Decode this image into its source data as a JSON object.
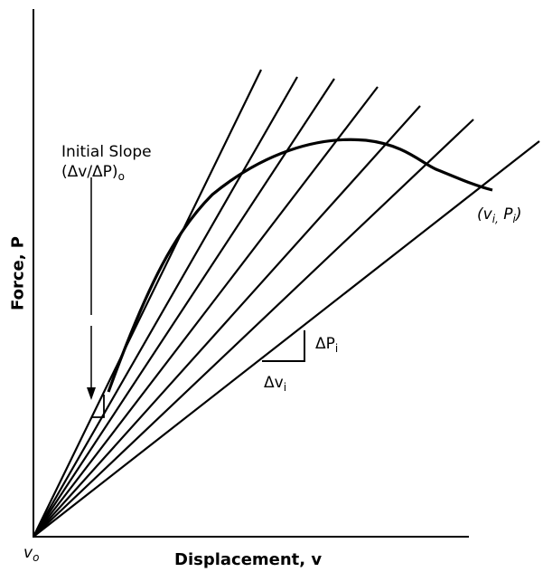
{
  "diagram": {
    "x_axis_title": "Displacement, v",
    "y_axis_title": "Force, P",
    "origin_label": {
      "symbol": "v",
      "subscript": "o"
    },
    "initial_slope": {
      "line1": "Initial Slope",
      "line2_main": "(Δv/ΔP)",
      "line2_sub": "o"
    },
    "end_point_label": "(v",
    "end_point_sub_i": "i,",
    "end_point_mid": " P",
    "end_point_sub_f": "i",
    "end_point_close": ")",
    "delta_p": {
      "main": "ΔP",
      "sub": "i"
    },
    "delta_v": {
      "main": "Δv",
      "sub": "i"
    },
    "colors": {
      "line": "#000000",
      "background": "#ffffff"
    }
  }
}
